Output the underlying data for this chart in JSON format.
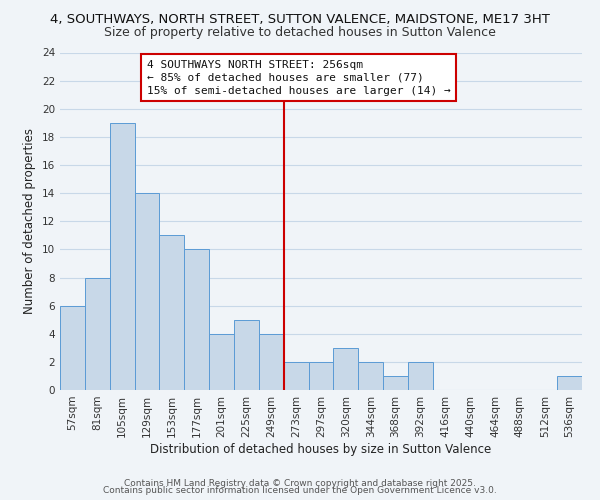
{
  "title": "4, SOUTHWAYS, NORTH STREET, SUTTON VALENCE, MAIDSTONE, ME17 3HT",
  "subtitle": "Size of property relative to detached houses in Sutton Valence",
  "xlabel": "Distribution of detached houses by size in Sutton Valence",
  "ylabel": "Number of detached properties",
  "bar_color": "#c8d8e8",
  "bar_edge_color": "#5b9bd5",
  "background_color": "#f0f4f8",
  "grid_color": "#c8d8e8",
  "categories": [
    "57sqm",
    "81sqm",
    "105sqm",
    "129sqm",
    "153sqm",
    "177sqm",
    "201sqm",
    "225sqm",
    "249sqm",
    "273sqm",
    "297sqm",
    "320sqm",
    "344sqm",
    "368sqm",
    "392sqm",
    "416sqm",
    "440sqm",
    "464sqm",
    "488sqm",
    "512sqm",
    "536sqm"
  ],
  "values": [
    6,
    8,
    19,
    14,
    11,
    10,
    4,
    5,
    4,
    2,
    2,
    3,
    2,
    1,
    2,
    0,
    0,
    0,
    0,
    0,
    1
  ],
  "ylim": [
    0,
    24
  ],
  "yticks": [
    0,
    2,
    4,
    6,
    8,
    10,
    12,
    14,
    16,
    18,
    20,
    22,
    24
  ],
  "vline_index": 8,
  "vline_color": "#cc0000",
  "annotation_text": "4 SOUTHWAYS NORTH STREET: 256sqm\n← 85% of detached houses are smaller (77)\n15% of semi-detached houses are larger (14) →",
  "footer_line1": "Contains HM Land Registry data © Crown copyright and database right 2025.",
  "footer_line2": "Contains public sector information licensed under the Open Government Licence v3.0.",
  "title_fontsize": 9.5,
  "subtitle_fontsize": 9,
  "axis_label_fontsize": 8.5,
  "tick_fontsize": 7.5,
  "annotation_fontsize": 8,
  "footer_fontsize": 6.5
}
